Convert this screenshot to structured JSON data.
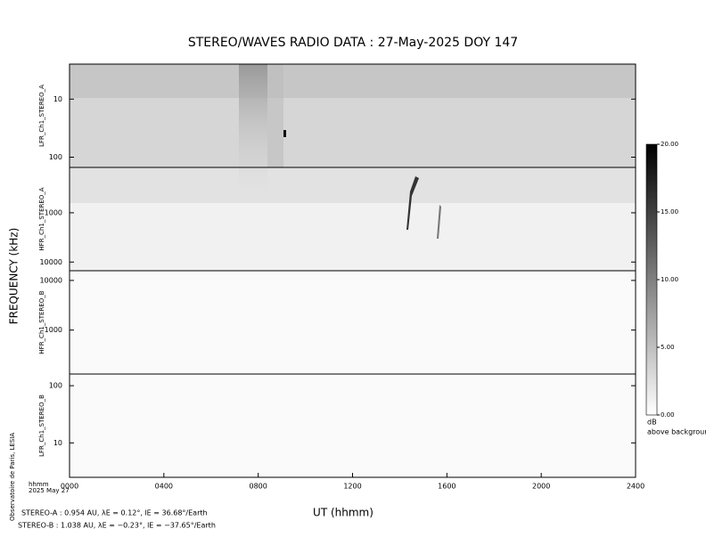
{
  "chart_data": {
    "type": "spectrogram",
    "title": "STEREO/WAVES  RADIO  DATA : 27-May-2025  DOY 147",
    "ylabel": "FREQUENCY (kHz)",
    "xlabel": "UT (hhmm)",
    "xlim": [
      0,
      2400
    ],
    "xticks": [
      {
        "value": 0,
        "label": "0000"
      },
      {
        "value": 400,
        "label": "0400"
      },
      {
        "value": 800,
        "label": "0800"
      },
      {
        "value": 1200,
        "label": "1200"
      },
      {
        "value": 1600,
        "label": "1600"
      },
      {
        "value": 2000,
        "label": "2000"
      },
      {
        "value": 2400,
        "label": "2400"
      }
    ],
    "date_unit": "hhmm",
    "date": "2025 May 27",
    "credit": "Observatoire de Paris, LESIA",
    "log_scale": true,
    "panels": [
      {
        "label": "LFR_Ch1_STEREO_A",
        "ylim": [
          2.5,
          150
        ],
        "inverted": true,
        "yticks": [
          10,
          100
        ]
      },
      {
        "label": "HFR_Ch1_STEREO_A",
        "ylim": [
          120,
          15000
        ],
        "inverted": true,
        "yticks": [
          1000,
          10000
        ]
      },
      {
        "label": "HFR_Ch1_STEREO_B",
        "ylim": [
          130,
          15700
        ],
        "inverted": false,
        "yticks": [
          1000,
          10000
        ]
      },
      {
        "label": "LFR_Ch1_STEREO_B",
        "ylim": [
          2.5,
          160
        ],
        "inverted": false,
        "yticks": [
          10,
          100
        ]
      }
    ],
    "colorbar": {
      "lim": [
        0,
        20
      ],
      "ticks": [
        {
          "value": 0,
          "label": "0.00"
        },
        {
          "value": 5,
          "label": "5.00"
        },
        {
          "value": 10,
          "label": "10.00"
        },
        {
          "value": 15,
          "label": "15.00"
        },
        {
          "value": 20,
          "label": "20.00"
        }
      ],
      "unit": "dB",
      "label": "above background"
    },
    "notes": [
      "STEREO-A : 0.954 AU, λE = 0.12°, lE = 36.68°/Earth",
      "STEREO-B : 1.038 AU, λE = −0.23°, lE = −37.65°/Earth"
    ]
  }
}
